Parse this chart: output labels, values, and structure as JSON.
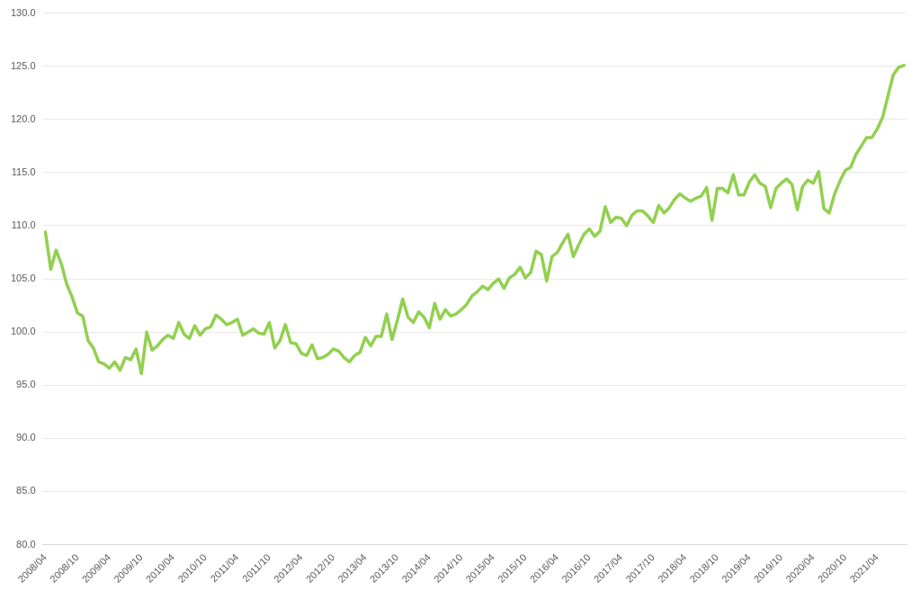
{
  "chart_data": {
    "type": "line",
    "categories": [
      "2008/04",
      null,
      null,
      null,
      null,
      null,
      "2008/10",
      null,
      null,
      null,
      null,
      null,
      "2009/04",
      null,
      null,
      null,
      null,
      null,
      "2009/10",
      null,
      null,
      null,
      null,
      null,
      "2010/04",
      null,
      null,
      null,
      null,
      null,
      "2010/10",
      null,
      null,
      null,
      null,
      null,
      "2011/04",
      null,
      null,
      null,
      null,
      null,
      "2011/10",
      null,
      null,
      null,
      null,
      null,
      "2012/04",
      null,
      null,
      null,
      null,
      null,
      "2012/10",
      null,
      null,
      null,
      null,
      null,
      "2013/04",
      null,
      null,
      null,
      null,
      null,
      "2013/10",
      null,
      null,
      null,
      null,
      null,
      "2014/04",
      null,
      null,
      null,
      null,
      null,
      "2014/10",
      null,
      null,
      null,
      null,
      null,
      "2015/04",
      null,
      null,
      null,
      null,
      null,
      "2015/10",
      null,
      null,
      null,
      null,
      null,
      "2016/04",
      null,
      null,
      null,
      null,
      null,
      "2016/10",
      null,
      null,
      null,
      null,
      null,
      "2017/04",
      null,
      null,
      null,
      null,
      null,
      "2017/10",
      null,
      null,
      null,
      null,
      null,
      "2018/04",
      null,
      null,
      null,
      null,
      null,
      "2018/10",
      null,
      null,
      null,
      null,
      null,
      "2019/04",
      null,
      null,
      null,
      null,
      null,
      "2019/10",
      null,
      null,
      null,
      null,
      null,
      "2020/04",
      null,
      null,
      null,
      null,
      null,
      "2020/10",
      null,
      null,
      null,
      null,
      null,
      "2021/04",
      null,
      null,
      null,
      null,
      null
    ],
    "series": [
      {
        "color": "#92d050",
        "values": [
          109.4,
          105.9,
          107.7,
          106.4,
          104.5,
          103.3,
          101.8,
          101.5,
          99.2,
          98.5,
          97.2,
          97.0,
          96.6,
          97.2,
          96.4,
          97.6,
          97.4,
          98.4,
          96.1,
          100.0,
          98.3,
          98.7,
          99.3,
          99.7,
          99.4,
          100.9,
          99.8,
          99.4,
          100.6,
          99.7,
          100.3,
          100.5,
          101.6,
          101.2,
          100.7,
          100.9,
          101.2,
          99.7,
          100.0,
          100.3,
          99.9,
          99.8,
          100.9,
          98.5,
          99.2,
          100.7,
          99.0,
          98.9,
          98.0,
          97.8,
          98.8,
          97.5,
          97.6,
          97.9,
          98.4,
          98.2,
          97.6,
          97.2,
          97.8,
          98.1,
          99.5,
          98.7,
          99.6,
          99.6,
          101.7,
          99.3,
          101.1,
          103.1,
          101.4,
          100.9,
          101.9,
          101.4,
          100.4,
          102.7,
          101.2,
          102.1,
          101.5,
          101.7,
          102.1,
          102.6,
          103.4,
          103.8,
          104.3,
          104.0,
          104.6,
          105.0,
          104.1,
          105.1,
          105.4,
          106.1,
          105.1,
          105.6,
          107.6,
          107.3,
          104.8,
          107.1,
          107.5,
          108.4,
          109.2,
          107.1,
          108.2,
          109.2,
          109.7,
          109.0,
          109.5,
          111.8,
          110.3,
          110.8,
          110.7,
          110.0,
          111.0,
          111.4,
          111.4,
          110.9,
          110.3,
          111.9,
          111.2,
          111.7,
          112.5,
          113.0,
          112.6,
          112.3,
          112.6,
          112.8,
          113.6,
          110.5,
          113.5,
          113.5,
          113.1,
          114.8,
          112.9,
          112.9,
          114.1,
          114.8,
          114.0,
          113.7,
          111.7,
          113.5,
          114.0,
          114.4,
          113.9,
          111.5,
          113.7,
          114.3,
          114.0,
          115.1,
          111.6,
          111.2,
          113.0,
          114.2,
          115.2,
          115.5,
          116.7,
          117.5,
          118.3,
          118.3,
          119.1,
          120.2,
          122.2,
          124.2,
          124.9,
          125.1
        ]
      }
    ],
    "ylim": [
      80,
      130
    ],
    "yticks": [
      {
        "value": 80,
        "label": "80.0"
      },
      {
        "value": 85,
        "label": "85.0"
      },
      {
        "value": 90,
        "label": "90.0"
      },
      {
        "value": 95,
        "label": "95.0"
      },
      {
        "value": 100,
        "label": "100.0"
      },
      {
        "value": 105,
        "label": "105.0"
      },
      {
        "value": 110,
        "label": "110.0"
      },
      {
        "value": 115,
        "label": "115.0"
      },
      {
        "value": 120,
        "label": "120.0"
      },
      {
        "value": 125,
        "label": "125.0"
      },
      {
        "value": 130,
        "label": "130.0"
      }
    ],
    "grid": "y",
    "marker": "none",
    "line_style": "solid",
    "legend": false
  }
}
